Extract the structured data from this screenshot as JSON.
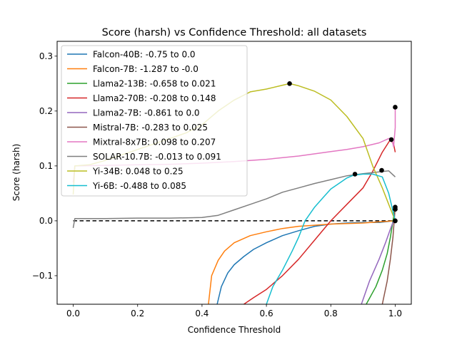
{
  "chart_data": {
    "type": "line",
    "title": "Score (harsh) vs Confidence Threshold: all datasets",
    "xlabel": "Confidence Threshold",
    "ylabel": "Score (harsh)",
    "xlim": [
      -0.05,
      1.05
    ],
    "ylim": [
      -0.152,
      0.327
    ],
    "xticks": [
      "0.0",
      "0.2",
      "0.4",
      "0.6",
      "0.8",
      "1.0"
    ],
    "yticks": [
      "−0.1",
      "0.0",
      "0.1",
      "0.2",
      "0.3"
    ],
    "xtick_values": [
      0.0,
      0.2,
      0.4,
      0.6,
      0.8,
      1.0
    ],
    "ytick_values": [
      -0.1,
      0.0,
      0.1,
      0.2,
      0.3
    ],
    "grid": false,
    "legend_position": "upper-left",
    "reference_line": {
      "y": 0.0,
      "x_range": [
        0.0,
        1.0
      ],
      "style": "dashed",
      "color": "#000000"
    },
    "series": [
      {
        "name": "Falcon-40B: -0.75 to 0.0",
        "color": "#1f77b4",
        "x": [
          0.447,
          0.46,
          0.48,
          0.5,
          0.53,
          0.56,
          0.6,
          0.65,
          0.7,
          0.75,
          0.8,
          0.85,
          0.9,
          0.95,
          0.98,
          0.99,
          1.0
        ],
        "y": [
          -0.152,
          -0.12,
          -0.095,
          -0.08,
          -0.065,
          -0.052,
          -0.04,
          -0.027,
          -0.018,
          -0.01,
          -0.006,
          -0.004,
          -0.003,
          -0.003,
          -0.001,
          0.0,
          0.0
        ],
        "markers": []
      },
      {
        "name": "Falcon-7B: -1.287 to -0.0",
        "color": "#ff7f0e",
        "x": [
          0.42,
          0.43,
          0.45,
          0.47,
          0.5,
          0.55,
          0.6,
          0.65,
          0.7,
          0.75,
          0.8,
          0.85,
          0.9,
          0.95,
          1.0
        ],
        "y": [
          -0.152,
          -0.1,
          -0.072,
          -0.055,
          -0.04,
          -0.027,
          -0.02,
          -0.014,
          -0.01,
          -0.008,
          -0.006,
          -0.005,
          -0.004,
          -0.002,
          0.0
        ],
        "markers": []
      },
      {
        "name": "Llama2-13B: -0.658 to 0.021",
        "color": "#2ca02c",
        "x": [
          0.91,
          0.94,
          0.96,
          0.975,
          0.985,
          0.993,
          0.998,
          1.0
        ],
        "y": [
          -0.152,
          -0.12,
          -0.09,
          -0.06,
          -0.03,
          0.0,
          0.018,
          0.021
        ],
        "markers": [
          [
            1.0,
            0.021
          ]
        ]
      },
      {
        "name": "Llama2-70B: -0.208 to 0.148",
        "color": "#d62728",
        "x": [
          0.53,
          0.56,
          0.6,
          0.65,
          0.7,
          0.75,
          0.8,
          0.85,
          0.9,
          0.93,
          0.96,
          0.985,
          0.995,
          1.0
        ],
        "y": [
          -0.152,
          -0.14,
          -0.125,
          -0.1,
          -0.07,
          -0.035,
          0.0,
          0.03,
          0.06,
          0.09,
          0.125,
          0.148,
          0.14,
          0.125
        ],
        "markers": [
          [
            0.988,
            0.148
          ]
        ]
      },
      {
        "name": "Llama2-7B: -0.861 to 0.0",
        "color": "#9467bd",
        "x": [
          0.895,
          0.92,
          0.95,
          0.97,
          0.985,
          0.995,
          1.0
        ],
        "y": [
          -0.152,
          -0.11,
          -0.07,
          -0.04,
          -0.015,
          0.0,
          0.0
        ],
        "markers": [
          [
            1.0,
            0.0
          ]
        ]
      },
      {
        "name": "Mistral-7B: -0.283 to 0.025",
        "color": "#8c564b",
        "x": [
          0.96,
          0.975,
          0.985,
          0.993,
          0.998,
          1.0
        ],
        "y": [
          -0.152,
          -0.11,
          -0.07,
          -0.03,
          0.01,
          0.025
        ],
        "markers": [
          [
            1.0,
            0.025
          ]
        ]
      },
      {
        "name": "Mixtral-8x7B: 0.098 to 0.207",
        "color": "#e377c2",
        "x": [
          0.0,
          0.005,
          0.1,
          0.2,
          0.3,
          0.4,
          0.5,
          0.6,
          0.7,
          0.8,
          0.85,
          0.9,
          0.95,
          0.98,
          0.99,
          0.995,
          1.0,
          1.0
        ],
        "y": [
          0.07,
          0.1,
          0.101,
          0.102,
          0.103,
          0.105,
          0.108,
          0.112,
          0.118,
          0.126,
          0.13,
          0.135,
          0.142,
          0.15,
          0.148,
          0.135,
          0.17,
          0.207
        ],
        "markers": [
          [
            1.0,
            0.207
          ]
        ]
      },
      {
        "name": "SOLAR-10.7B: -0.013 to 0.091",
        "color": "#7f7f7f",
        "x": [
          0.0,
          0.005,
          0.1,
          0.2,
          0.3,
          0.4,
          0.45,
          0.5,
          0.55,
          0.6,
          0.65,
          0.7,
          0.75,
          0.8,
          0.85,
          0.9,
          0.95,
          0.98,
          1.0
        ],
        "y": [
          -0.013,
          0.004,
          0.004,
          0.005,
          0.005,
          0.006,
          0.01,
          0.02,
          0.03,
          0.04,
          0.052,
          0.06,
          0.068,
          0.075,
          0.082,
          0.086,
          0.089,
          0.091,
          0.08
        ],
        "markers": []
      },
      {
        "name": "Yi-34B: 0.048 to 0.25",
        "color": "#bcbd22",
        "x": [
          0.0,
          0.005,
          0.05,
          0.1,
          0.15,
          0.2,
          0.25,
          0.3,
          0.35,
          0.4,
          0.45,
          0.5,
          0.55,
          0.6,
          0.65,
          0.672,
          0.7,
          0.75,
          0.8,
          0.85,
          0.9,
          0.93,
          0.96,
          0.98,
          1.0
        ],
        "y": [
          0.048,
          0.1,
          0.102,
          0.11,
          0.12,
          0.13,
          0.14,
          0.15,
          0.16,
          0.175,
          0.2,
          0.22,
          0.235,
          0.24,
          0.247,
          0.25,
          0.246,
          0.236,
          0.22,
          0.19,
          0.15,
          0.1,
          0.06,
          0.03,
          0.0
        ],
        "markers": [
          [
            0.672,
            0.25
          ]
        ]
      },
      {
        "name": "Yi-6B: -0.488 to 0.085",
        "color": "#17becf",
        "x": [
          0.6,
          0.62,
          0.65,
          0.68,
          0.7,
          0.72,
          0.75,
          0.78,
          0.8,
          0.83,
          0.85,
          0.87,
          0.9,
          0.93,
          0.96,
          0.98,
          1.0
        ],
        "y": [
          -0.152,
          -0.12,
          -0.09,
          -0.055,
          -0.03,
          0.0,
          0.025,
          0.045,
          0.058,
          0.07,
          0.078,
          0.083,
          0.085,
          0.085,
          0.08,
          0.05,
          0.0
        ],
        "markers": [
          [
            0.875,
            0.085
          ]
        ]
      }
    ],
    "extra_markers": [
      [
        0.958,
        0.092
      ],
      [
        1.0,
        0.0
      ],
      [
        1.0,
        0.021
      ]
    ]
  }
}
